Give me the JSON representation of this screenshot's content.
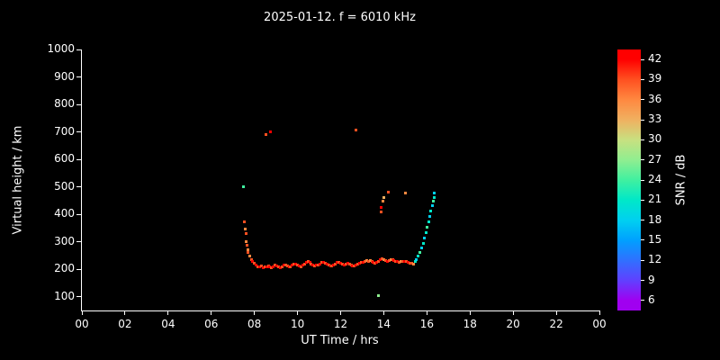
{
  "title": "2025-01-12. f = 6010 kHz",
  "colors": {
    "background": "#000000",
    "foreground": "#ffffff"
  },
  "chart_data": {
    "type": "scatter",
    "title": "2025-01-12. f = 6010 kHz",
    "xlabel": "UT Time / hrs",
    "ylabel": "Virtual height / km",
    "xlim": [
      0,
      24
    ],
    "ylim": [
      50,
      1000
    ],
    "grid": false,
    "x_ticks": [
      {
        "value": 0,
        "label": "00"
      },
      {
        "value": 2,
        "label": "02"
      },
      {
        "value": 4,
        "label": "04"
      },
      {
        "value": 6,
        "label": "06"
      },
      {
        "value": 8,
        "label": "08"
      },
      {
        "value": 10,
        "label": "10"
      },
      {
        "value": 12,
        "label": "12"
      },
      {
        "value": 14,
        "label": "14"
      },
      {
        "value": 16,
        "label": "16"
      },
      {
        "value": 18,
        "label": "18"
      },
      {
        "value": 20,
        "label": "20"
      },
      {
        "value": 22,
        "label": "22"
      },
      {
        "value": 24,
        "label": "00"
      }
    ],
    "y_ticks": [
      100,
      200,
      300,
      400,
      500,
      600,
      700,
      800,
      900,
      1000
    ],
    "colorbar": {
      "label": "SNR / dB",
      "min": 4.5,
      "max": 43.5,
      "ticks": [
        6,
        9,
        12,
        15,
        18,
        21,
        24,
        27,
        30,
        33,
        36,
        39,
        42
      ],
      "stops": [
        {
          "value": 6,
          "color": "#a000f0"
        },
        {
          "value": 9,
          "color": "#6040ff"
        },
        {
          "value": 12,
          "color": "#3070ff"
        },
        {
          "value": 15,
          "color": "#00a0ff"
        },
        {
          "value": 18,
          "color": "#00d0f0"
        },
        {
          "value": 21,
          "color": "#00e8c8"
        },
        {
          "value": 24,
          "color": "#40f0a0"
        },
        {
          "value": 27,
          "color": "#90ee90"
        },
        {
          "value": 30,
          "color": "#c8e080"
        },
        {
          "value": 33,
          "color": "#f0b060"
        },
        {
          "value": 36,
          "color": "#ff8840"
        },
        {
          "value": 39,
          "color": "#ff5020"
        },
        {
          "value": 42,
          "color": "#ff0000"
        }
      ]
    },
    "points_format": [
      "x_hours",
      "y_km",
      "snr_db"
    ],
    "points": [
      [
        7.5,
        500,
        24
      ],
      [
        7.55,
        372,
        39
      ],
      [
        7.58,
        345,
        36
      ],
      [
        7.6,
        330,
        39
      ],
      [
        7.63,
        302,
        36
      ],
      [
        7.66,
        288,
        39
      ],
      [
        7.69,
        272,
        36
      ],
      [
        7.72,
        262,
        39
      ],
      [
        7.78,
        248,
        36
      ],
      [
        7.85,
        235,
        39
      ],
      [
        7.92,
        228,
        42
      ],
      [
        8.0,
        222,
        39
      ],
      [
        8.08,
        215,
        42
      ],
      [
        8.16,
        210,
        39
      ],
      [
        8.24,
        208,
        42
      ],
      [
        8.32,
        212,
        39
      ],
      [
        8.4,
        206,
        42
      ],
      [
        8.48,
        208,
        39
      ],
      [
        8.55,
        690,
        39
      ],
      [
        8.56,
        210,
        42
      ],
      [
        8.64,
        212,
        39
      ],
      [
        8.72,
        208,
        42
      ],
      [
        8.76,
        700,
        42
      ],
      [
        8.8,
        206,
        39
      ],
      [
        8.88,
        210,
        42
      ],
      [
        8.96,
        214,
        39
      ],
      [
        9.04,
        212,
        42
      ],
      [
        9.12,
        208,
        39
      ],
      [
        9.2,
        206,
        42
      ],
      [
        9.28,
        210,
        39
      ],
      [
        9.36,
        214,
        42
      ],
      [
        9.44,
        216,
        39
      ],
      [
        9.52,
        212,
        39
      ],
      [
        9.6,
        208,
        42
      ],
      [
        9.68,
        210,
        39
      ],
      [
        9.76,
        214,
        42
      ],
      [
        9.84,
        218,
        39
      ],
      [
        9.92,
        220,
        42
      ],
      [
        10.0,
        216,
        39
      ],
      [
        10.08,
        212,
        42
      ],
      [
        10.16,
        210,
        39
      ],
      [
        10.24,
        214,
        42
      ],
      [
        10.32,
        220,
        39
      ],
      [
        10.4,
        226,
        42
      ],
      [
        10.48,
        228,
        39
      ],
      [
        10.56,
        224,
        42
      ],
      [
        10.64,
        218,
        39
      ],
      [
        10.72,
        214,
        42
      ],
      [
        10.8,
        212,
        39
      ],
      [
        10.88,
        214,
        42
      ],
      [
        10.96,
        216,
        39
      ],
      [
        11.04,
        220,
        42
      ],
      [
        11.12,
        224,
        39
      ],
      [
        11.2,
        226,
        42
      ],
      [
        11.28,
        222,
        39
      ],
      [
        11.36,
        218,
        42
      ],
      [
        11.44,
        215,
        39
      ],
      [
        11.52,
        213,
        42
      ],
      [
        11.6,
        212,
        39
      ],
      [
        11.68,
        215,
        42
      ],
      [
        11.76,
        220,
        39
      ],
      [
        11.84,
        224,
        42
      ],
      [
        11.92,
        226,
        39
      ],
      [
        12.0,
        222,
        42
      ],
      [
        12.08,
        218,
        39
      ],
      [
        12.16,
        215,
        42
      ],
      [
        12.24,
        218,
        39
      ],
      [
        12.32,
        222,
        42
      ],
      [
        12.4,
        220,
        39
      ],
      [
        12.48,
        216,
        39
      ],
      [
        12.56,
        213,
        42
      ],
      [
        12.64,
        212,
        39
      ],
      [
        12.7,
        706,
        39
      ],
      [
        12.72,
        215,
        42
      ],
      [
        12.8,
        218,
        39
      ],
      [
        12.88,
        222,
        42
      ],
      [
        12.96,
        226,
        39
      ],
      [
        13.04,
        224,
        42
      ],
      [
        13.12,
        228,
        39
      ],
      [
        13.2,
        232,
        36
      ],
      [
        13.28,
        228,
        39
      ],
      [
        13.36,
        233,
        36
      ],
      [
        13.44,
        229,
        39
      ],
      [
        13.52,
        226,
        42
      ],
      [
        13.6,
        223,
        39
      ],
      [
        13.68,
        225,
        42
      ],
      [
        13.76,
        104,
        27
      ],
      [
        13.76,
        230,
        39
      ],
      [
        13.84,
        236,
        42
      ],
      [
        13.86,
        408,
        39
      ],
      [
        13.88,
        425,
        42
      ],
      [
        13.92,
        240,
        39
      ],
      [
        13.96,
        448,
        36
      ],
      [
        14.0,
        236,
        36
      ],
      [
        14.02,
        462,
        33
      ],
      [
        14.08,
        232,
        39
      ],
      [
        14.16,
        229,
        42
      ],
      [
        14.22,
        482,
        39
      ],
      [
        14.24,
        231,
        39
      ],
      [
        14.32,
        234,
        36
      ],
      [
        14.4,
        236,
        39
      ],
      [
        14.48,
        232,
        42
      ],
      [
        14.56,
        229,
        39
      ],
      [
        14.64,
        227,
        42
      ],
      [
        14.72,
        225,
        39
      ],
      [
        14.8,
        228,
        36
      ],
      [
        14.88,
        230,
        39
      ],
      [
        14.96,
        229,
        42
      ],
      [
        15.02,
        476,
        36
      ],
      [
        15.04,
        227,
        39
      ],
      [
        15.12,
        225,
        42
      ],
      [
        15.2,
        223,
        39
      ],
      [
        15.28,
        221,
        39
      ],
      [
        15.36,
        220,
        36
      ],
      [
        15.46,
        228,
        21
      ],
      [
        15.52,
        236,
        18
      ],
      [
        15.58,
        248,
        21
      ],
      [
        15.66,
        262,
        24
      ],
      [
        15.74,
        278,
        18
      ],
      [
        15.82,
        295,
        21
      ],
      [
        15.9,
        315,
        18
      ],
      [
        15.96,
        335,
        21
      ],
      [
        16.02,
        352,
        24
      ],
      [
        16.08,
        372,
        21
      ],
      [
        16.14,
        392,
        18
      ],
      [
        16.18,
        412,
        21
      ],
      [
        16.24,
        432,
        18
      ],
      [
        16.28,
        448,
        24
      ],
      [
        16.32,
        462,
        21
      ],
      [
        16.36,
        476,
        18
      ]
    ]
  }
}
